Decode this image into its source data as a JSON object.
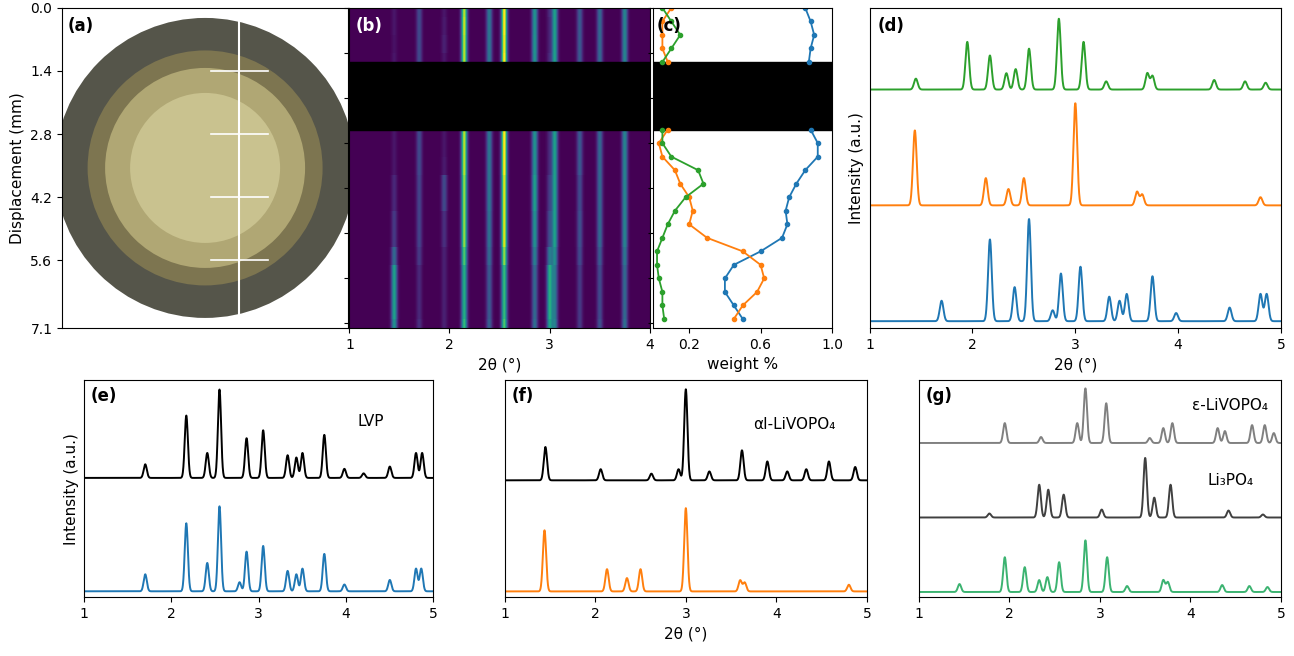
{
  "chart_data": [
    {
      "type": "image",
      "label": "(a)",
      "y_label": "Displacement (mm)",
      "ylim": [
        7.1,
        0.0
      ],
      "yticks": [
        0.0,
        1.4,
        2.8,
        4.2,
        5.6,
        7.1
      ],
      "tick_labels": "y"
    },
    {
      "type": "heatmap",
      "label": "(b)",
      "x_label": "2θ (°)",
      "xlim": [
        1,
        4
      ],
      "xticks": [
        1,
        2,
        3,
        4
      ],
      "ylim": [
        7.1,
        0.0
      ],
      "tick_labels": "x",
      "mask": [
        1.2,
        2.7
      ],
      "x": [
        1.45,
        1.7,
        1.95,
        2.15,
        2.4,
        2.55,
        2.85,
        3.0,
        3.05,
        3.3,
        3.5,
        3.75
      ],
      "y": [
        0.0,
        0.4,
        0.8,
        1.2,
        2.7,
        3.1,
        3.5,
        3.9,
        4.3,
        4.7,
        5.1,
        5.5,
        5.9,
        6.3,
        6.7,
        7.1
      ],
      "cells": [
        [
          0.05,
          0.2,
          0.05,
          0.8,
          0.35,
          0.9,
          0.45,
          0.1,
          0.5,
          0.25,
          0.3,
          0.4
        ],
        [
          0.05,
          0.2,
          0.06,
          0.82,
          0.35,
          0.9,
          0.45,
          0.08,
          0.5,
          0.25,
          0.3,
          0.4
        ],
        [
          0.04,
          0.2,
          0.08,
          0.8,
          0.35,
          0.88,
          0.46,
          0.08,
          0.5,
          0.25,
          0.3,
          0.4
        ],
        [
          0.05,
          0.2,
          0.05,
          0.8,
          0.35,
          0.9,
          0.45,
          0.1,
          0.5,
          0.25,
          0.3,
          0.4
        ],
        [
          0.05,
          0.2,
          0.05,
          0.8,
          0.35,
          0.9,
          0.45,
          0.1,
          0.5,
          0.25,
          0.3,
          0.4
        ],
        [
          0.05,
          0.2,
          0.05,
          0.8,
          0.35,
          0.9,
          0.45,
          0.1,
          0.5,
          0.25,
          0.3,
          0.4
        ],
        [
          0.05,
          0.2,
          0.06,
          0.8,
          0.35,
          0.9,
          0.45,
          0.1,
          0.5,
          0.25,
          0.3,
          0.4
        ],
        [
          0.1,
          0.18,
          0.2,
          0.75,
          0.35,
          0.85,
          0.5,
          0.15,
          0.5,
          0.2,
          0.3,
          0.4
        ],
        [
          0.1,
          0.18,
          0.2,
          0.75,
          0.35,
          0.85,
          0.5,
          0.15,
          0.5,
          0.2,
          0.3,
          0.4
        ],
        [
          0.15,
          0.18,
          0.12,
          0.75,
          0.33,
          0.85,
          0.45,
          0.2,
          0.5,
          0.22,
          0.3,
          0.4
        ],
        [
          0.15,
          0.18,
          0.12,
          0.75,
          0.33,
          0.85,
          0.45,
          0.2,
          0.5,
          0.22,
          0.3,
          0.4
        ],
        [
          0.3,
          0.15,
          0.08,
          0.65,
          0.3,
          0.75,
          0.38,
          0.35,
          0.42,
          0.2,
          0.25,
          0.35
        ],
        [
          0.5,
          0.1,
          0.08,
          0.55,
          0.25,
          0.6,
          0.3,
          0.55,
          0.35,
          0.15,
          0.2,
          0.3
        ],
        [
          0.5,
          0.1,
          0.08,
          0.55,
          0.25,
          0.6,
          0.3,
          0.55,
          0.35,
          0.15,
          0.2,
          0.3
        ],
        [
          0.5,
          0.1,
          0.08,
          0.55,
          0.25,
          0.6,
          0.3,
          0.55,
          0.35,
          0.15,
          0.2,
          0.3
        ],
        [
          0.45,
          0.12,
          0.08,
          0.6,
          0.27,
          0.65,
          0.32,
          0.5,
          0.38,
          0.15,
          0.22,
          0.32
        ]
      ]
    },
    {
      "type": "line",
      "label": "(c)",
      "x_label": "weight %",
      "xlim": [
        0.0,
        1.0
      ],
      "xticks": [
        0.2,
        0.6,
        1.0
      ],
      "ylim": [
        7.1,
        0.0
      ],
      "tick_labels": "x",
      "mask": [
        1.2,
        2.7
      ],
      "marker": "o",
      "y": [
        0.0,
        0.3,
        0.6,
        0.9,
        1.2,
        2.0,
        2.7,
        3.0,
        3.3,
        3.6,
        3.9,
        4.2,
        4.5,
        4.8,
        5.1,
        5.4,
        5.7,
        6.0,
        6.3,
        6.6,
        6.9
      ],
      "series": [
        {
          "color": "#1f77b4",
          "values": [
            0.85,
            0.88,
            0.9,
            0.88,
            0.87,
            null,
            0.88,
            0.92,
            0.92,
            0.85,
            0.8,
            0.76,
            0.74,
            0.75,
            0.72,
            0.6,
            0.45,
            0.4,
            0.4,
            0.45,
            0.5
          ]
        },
        {
          "color": "#ff7f0e",
          "values": [
            0.1,
            0.05,
            0.05,
            0.05,
            0.08,
            null,
            0.08,
            0.03,
            0.05,
            0.12,
            0.15,
            0.2,
            0.22,
            0.2,
            0.3,
            0.5,
            0.6,
            0.62,
            0.58,
            0.5,
            0.45
          ]
        },
        {
          "color": "#2ca02c",
          "values": [
            0.05,
            0.1,
            0.15,
            0.1,
            0.05,
            null,
            0.05,
            0.05,
            0.1,
            0.25,
            0.28,
            0.18,
            0.12,
            0.08,
            0.05,
            0.02,
            0.02,
            0.03,
            0.05,
            0.05,
            0.06
          ]
        }
      ]
    },
    {
      "type": "line",
      "label": "(d)",
      "x_label": "2θ (°)",
      "y_label": "Intensity (a.u.)",
      "xlim": [
        1,
        5
      ],
      "xticks": [
        1,
        2,
        3,
        4,
        5
      ],
      "tick_labels": "x",
      "series": [
        {
          "color": "#2ca02c",
          "x": [
            1.45,
            1.95,
            2.17,
            2.33,
            2.42,
            2.55,
            2.84,
            3.08,
            3.3,
            3.7,
            3.75,
            4.35,
            4.65,
            4.85
          ],
          "values": [
            0.08,
            0.35,
            0.25,
            0.12,
            0.15,
            0.3,
            0.52,
            0.35,
            0.06,
            0.12,
            0.1,
            0.07,
            0.06,
            0.05
          ]
        },
        {
          "color": "#ff7f0e",
          "x": [
            1.44,
            2.13,
            2.35,
            2.5,
            3.0,
            3.6,
            3.65,
            4.8
          ],
          "values": [
            0.55,
            0.2,
            0.12,
            0.2,
            0.75,
            0.1,
            0.08,
            0.06
          ]
        },
        {
          "color": "#1f77b4",
          "x": [
            1.7,
            2.17,
            2.41,
            2.55,
            2.78,
            2.86,
            3.05,
            3.33,
            3.43,
            3.5,
            3.75,
            3.98,
            4.5,
            4.8,
            4.86
          ],
          "values": [
            0.15,
            0.6,
            0.25,
            0.75,
            0.08,
            0.35,
            0.4,
            0.18,
            0.15,
            0.2,
            0.33,
            0.06,
            0.1,
            0.2,
            0.2
          ]
        }
      ]
    },
    {
      "type": "line",
      "label": "(e)",
      "y_label": "Intensity (a.u.)",
      "xlim": [
        1,
        5
      ],
      "xticks": [
        1,
        2,
        3,
        4,
        5
      ],
      "tick_labels": "x",
      "series": [
        {
          "name": "LVP",
          "color": "#000000",
          "x": [
            1.7,
            2.17,
            2.41,
            2.55,
            2.86,
            3.05,
            3.33,
            3.43,
            3.5,
            3.75,
            3.98,
            4.2,
            4.5,
            4.8,
            4.87
          ],
          "values": [
            0.12,
            0.55,
            0.22,
            0.78,
            0.35,
            0.42,
            0.2,
            0.18,
            0.22,
            0.38,
            0.08,
            0.04,
            0.1,
            0.22,
            0.22
          ]
        },
        {
          "color": "#1f77b4",
          "x": [
            1.7,
            2.17,
            2.41,
            2.55,
            2.78,
            2.86,
            3.05,
            3.33,
            3.43,
            3.5,
            3.75,
            3.98,
            4.5,
            4.8,
            4.86
          ],
          "values": [
            0.15,
            0.6,
            0.25,
            0.75,
            0.08,
            0.35,
            0.4,
            0.18,
            0.15,
            0.2,
            0.33,
            0.06,
            0.1,
            0.2,
            0.2
          ]
        }
      ]
    },
    {
      "type": "line",
      "label": "(f)",
      "x_label": "2θ (°)",
      "xlim": [
        1,
        5
      ],
      "xticks": [
        1,
        2,
        3,
        4,
        5
      ],
      "tick_labels": "x",
      "series": [
        {
          "name": "αI-LiVOPO₄",
          "color": "#000000",
          "x": [
            1.45,
            2.06,
            2.62,
            2.92,
            3.0,
            3.26,
            3.62,
            3.9,
            4.12,
            4.33,
            4.58,
            4.87
          ],
          "values": [
            0.3,
            0.1,
            0.06,
            0.1,
            0.82,
            0.08,
            0.27,
            0.17,
            0.08,
            0.1,
            0.17,
            0.12
          ]
        },
        {
          "color": "#ff7f0e",
          "x": [
            1.44,
            2.13,
            2.35,
            2.5,
            3.0,
            3.6,
            3.65,
            4.8
          ],
          "values": [
            0.55,
            0.2,
            0.12,
            0.2,
            0.75,
            0.1,
            0.08,
            0.06
          ]
        }
      ]
    },
    {
      "type": "line",
      "label": "(g)",
      "xlim": [
        1,
        5
      ],
      "xticks": [
        1,
        2,
        3,
        4,
        5
      ],
      "tick_labels": "x",
      "series": [
        {
          "name": "ε-LiVOPO₄",
          "color": "#808080",
          "x": [
            1.95,
            2.35,
            2.75,
            2.84,
            3.07,
            3.55,
            3.7,
            3.8,
            4.3,
            4.38,
            4.68,
            4.82,
            4.92
          ],
          "values": [
            0.2,
            0.06,
            0.2,
            0.55,
            0.4,
            0.05,
            0.15,
            0.2,
            0.15,
            0.12,
            0.18,
            0.18,
            0.1
          ]
        },
        {
          "name": "Li₃PO₄",
          "color": "#404040",
          "x": [
            1.78,
            2.33,
            2.43,
            2.6,
            3.02,
            3.5,
            3.6,
            3.78,
            4.42,
            4.8
          ],
          "values": [
            0.04,
            0.33,
            0.28,
            0.23,
            0.08,
            0.6,
            0.2,
            0.33,
            0.07,
            0.03
          ]
        },
        {
          "color": "#3cb371",
          "x": [
            1.45,
            1.95,
            2.17,
            2.33,
            2.42,
            2.55,
            2.84,
            3.08,
            3.3,
            3.7,
            3.75,
            4.35,
            4.65,
            4.85
          ],
          "values": [
            0.08,
            0.35,
            0.25,
            0.12,
            0.15,
            0.3,
            0.52,
            0.35,
            0.06,
            0.12,
            0.1,
            0.07,
            0.06,
            0.05
          ]
        }
      ]
    }
  ]
}
